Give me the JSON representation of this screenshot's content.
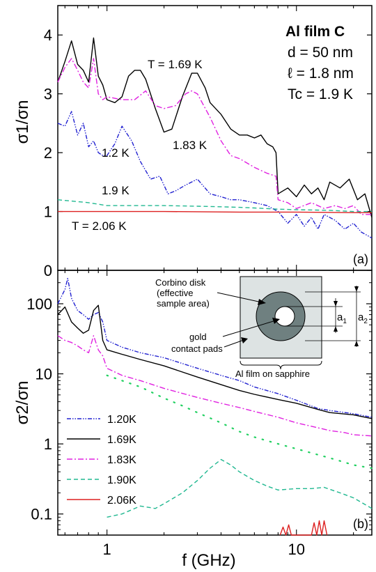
{
  "chart_data": [
    {
      "type": "line",
      "panel_label": "(a)",
      "ylabel": "σ1/σn",
      "xscale": "log",
      "xlim": [
        0.55,
        25
      ],
      "ylim": [
        0,
        4.5
      ],
      "yticks": [
        "0",
        "1",
        "2",
        "3",
        "4"
      ],
      "info_box": {
        "title": "Al film C",
        "lines": [
          "d = 50 nm",
          "ℓ = 1.8 nm",
          "Tc = 1.9 K"
        ]
      },
      "annotations": {
        "t169": "T = 1.69 K",
        "t183": "1.83 K",
        "t12": "1.2 K",
        "t19": "1.9 K",
        "t206": "T = 2.06 K"
      },
      "series": [
        {
          "name": "1.69 K",
          "color": "#000000",
          "x": [
            0.55,
            0.6,
            0.65,
            0.7,
            0.75,
            0.8,
            0.85,
            0.9,
            0.95,
            1.0,
            1.1,
            1.2,
            1.3,
            1.4,
            1.5,
            1.6,
            1.8,
            2.0,
            2.2,
            2.5,
            2.8,
            3.0,
            3.3,
            3.5,
            4.0,
            4.5,
            5.0,
            5.5,
            6.0,
            6.5,
            7.0,
            7.5,
            7.8,
            8.0,
            9,
            10,
            11,
            12,
            13,
            14,
            15,
            17,
            19,
            21,
            23,
            25
          ],
          "y": [
            3.2,
            3.55,
            3.9,
            3.5,
            3.4,
            3.2,
            3.95,
            3.3,
            3.15,
            2.9,
            2.85,
            2.95,
            3.3,
            3.4,
            3.4,
            3.25,
            2.75,
            2.35,
            2.4,
            2.95,
            3.35,
            3.35,
            3.1,
            2.85,
            2.65,
            2.4,
            2.3,
            2.3,
            2.25,
            2.3,
            2.15,
            2.1,
            2.0,
            1.3,
            1.4,
            1.25,
            1.45,
            1.3,
            1.4,
            1.2,
            1.5,
            1.4,
            1.55,
            1.2,
            1.3,
            0.9
          ]
        },
        {
          "name": "1.83 K",
          "color": "#e020e0",
          "x": [
            0.55,
            0.6,
            0.65,
            0.7,
            0.75,
            0.8,
            0.85,
            0.9,
            0.95,
            1.0,
            1.2,
            1.4,
            1.6,
            1.8,
            2.0,
            2.3,
            2.6,
            2.8,
            3.0,
            3.5,
            4.0,
            4.5,
            5.0,
            6.0,
            7.0,
            7.8,
            8.0,
            9,
            10,
            12,
            14,
            16,
            18,
            20,
            22,
            25
          ],
          "y": [
            3.2,
            3.45,
            3.6,
            3.4,
            3.2,
            3.1,
            3.6,
            3.0,
            2.9,
            2.95,
            2.9,
            2.9,
            3.05,
            2.8,
            2.75,
            2.8,
            3.0,
            3.05,
            3.0,
            2.6,
            2.2,
            1.95,
            1.9,
            1.75,
            1.65,
            1.6,
            1.2,
            1.15,
            1.05,
            1.15,
            1.05,
            1.1,
            1.05,
            1.1,
            0.95,
            0.95
          ]
        },
        {
          "name": "1.2 K",
          "color": "#2020d0",
          "x": [
            0.55,
            0.6,
            0.65,
            0.7,
            0.75,
            0.8,
            0.85,
            0.9,
            0.95,
            1.0,
            1.1,
            1.2,
            1.35,
            1.5,
            1.7,
            1.9,
            2.1,
            2.3,
            2.6,
            3.0,
            3.5,
            4.0,
            4.5,
            5,
            6,
            7,
            8,
            9,
            10,
            11,
            12,
            13,
            14,
            16,
            18,
            20,
            22,
            25
          ],
          "y": [
            2.5,
            2.45,
            2.7,
            2.3,
            2.5,
            2.1,
            2.2,
            2.0,
            1.95,
            1.95,
            2.15,
            2.45,
            2.2,
            1.85,
            1.55,
            1.6,
            1.3,
            1.35,
            1.45,
            1.55,
            1.3,
            1.25,
            1.2,
            1.2,
            1.15,
            1.1,
            1.0,
            0.8,
            0.95,
            0.75,
            0.9,
            0.7,
            0.95,
            0.85,
            0.7,
            0.8,
            0.65,
            0.55
          ]
        },
        {
          "name": "1.9 K",
          "color": "#20b890",
          "x": [
            0.55,
            0.8,
            1.0,
            1.5,
            2,
            3,
            4,
            5,
            6,
            8,
            10,
            15,
            20,
            25
          ],
          "y": [
            1.2,
            1.15,
            1.1,
            1.1,
            1.1,
            1.09,
            1.08,
            1.07,
            1.06,
            1.04,
            1.03,
            1.02,
            1.0,
            1.0
          ]
        },
        {
          "name": "2.06 K",
          "color": "#dd2020",
          "x": [
            0.55,
            1,
            2,
            5,
            10,
            20,
            25
          ],
          "y": [
            1.0,
            1.0,
            1.0,
            0.99,
            0.99,
            0.98,
            0.98
          ]
        }
      ]
    },
    {
      "type": "line",
      "panel_label": "(b)",
      "xlabel": "f (GHz)",
      "ylabel": "σ2/σn",
      "xscale": "log",
      "yscale": "log",
      "xlim": [
        0.55,
        25
      ],
      "ylim": [
        0.05,
        300
      ],
      "xticks": [
        "1",
        "10"
      ],
      "yticks": [
        "0.1",
        "1",
        "10",
        "100"
      ],
      "inset": {
        "label1": "Corbino disk",
        "label2": "(effective",
        "label3": "sample area)",
        "label4": "gold",
        "label5": "contact pads",
        "caption": "Al film on sapphire",
        "a1": "a",
        "a1_sub": "1",
        "a2": "a",
        "a2_sub": "2"
      },
      "legend": [
        {
          "label": "1.20K",
          "color": "#2020d0"
        },
        {
          "label": "1.69K",
          "color": "#000000"
        },
        {
          "label": "1.83K",
          "color": "#e020e0"
        },
        {
          "label": "1.90K",
          "color": "#20b890"
        },
        {
          "label": "2.06K",
          "color": "#dd2020"
        }
      ],
      "series": [
        {
          "name": "1.20K",
          "color": "#2020d0",
          "x": [
            0.55,
            0.6,
            0.62,
            0.65,
            0.7,
            0.75,
            0.8,
            0.85,
            0.9,
            0.95,
            1.0,
            1.2,
            1.5,
            2,
            3,
            4,
            5,
            6,
            8,
            10,
            13,
            15,
            20,
            25
          ],
          "y": [
            100,
            160,
            230,
            120,
            80,
            70,
            60,
            70,
            75,
            55,
            30,
            24,
            20,
            17,
            12,
            9.5,
            8,
            6.5,
            5.2,
            4.2,
            3.2,
            3.0,
            2.7,
            2.4
          ]
        },
        {
          "name": "1.69K",
          "color": "#000000",
          "x": [
            0.55,
            0.6,
            0.65,
            0.7,
            0.75,
            0.8,
            0.85,
            0.9,
            0.95,
            1.0,
            1.2,
            1.5,
            2,
            3,
            4,
            5,
            6,
            8,
            10,
            13,
            15,
            20,
            25
          ],
          "y": [
            70,
            90,
            55,
            45,
            38,
            42,
            80,
            95,
            30,
            22,
            19,
            16,
            13,
            9,
            7,
            5.8,
            5.1,
            4.3,
            3.8,
            3.1,
            2.8,
            2.6,
            2.3
          ]
        },
        {
          "name": "1.83K",
          "color": "#e020e0",
          "x": [
            0.55,
            0.6,
            0.65,
            0.7,
            0.75,
            0.8,
            0.85,
            0.9,
            0.95,
            1.0,
            1.2,
            1.5,
            2,
            3,
            4,
            5,
            6,
            8,
            10,
            13,
            15,
            18,
            20,
            25
          ],
          "y": [
            35,
            30,
            28,
            25,
            22,
            20,
            35,
            22,
            18,
            12,
            9.5,
            8,
            6.2,
            4.6,
            3.8,
            3.3,
            2.9,
            2.4,
            2.0,
            1.7,
            1.55,
            1.45,
            1.35,
            1.3
          ]
        },
        {
          "name": "1.90K",
          "color": "#20b890",
          "x": [
            1.0,
            1.2,
            1.5,
            1.8,
            2,
            2.5,
            3,
            3.5,
            4,
            4.5,
            5,
            6,
            7,
            8,
            10,
            12,
            14,
            17,
            20,
            25
          ],
          "y": [
            0.09,
            0.1,
            0.13,
            0.12,
            0.14,
            0.2,
            0.3,
            0.45,
            0.6,
            0.5,
            0.4,
            0.3,
            0.25,
            0.22,
            0.23,
            0.23,
            0.24,
            0.2,
            0.17,
            0.12
          ]
        },
        {
          "name": "1.90K dots",
          "color": "#20d060",
          "x": [
            1.0,
            1.2,
            1.5,
            2,
            2.5,
            3,
            4,
            5,
            6,
            8,
            10,
            13,
            16,
            20,
            25
          ],
          "y": [
            9.5,
            8,
            6.5,
            4.5,
            3.5,
            2.8,
            2.0,
            1.5,
            1.25,
            1.0,
            0.85,
            0.7,
            0.6,
            0.5,
            0.45
          ]
        },
        {
          "name": "2.06K",
          "color": "#dd2020",
          "x": [
            8.2,
            8.5,
            8.8,
            9.1,
            9.4,
            12,
            12.4,
            12.8,
            13.2,
            13.6,
            14,
            14.5
          ],
          "y": [
            0.05,
            0.065,
            0.05,
            0.07,
            0.05,
            0.05,
            0.075,
            0.05,
            0.08,
            0.05,
            0.08,
            0.05
          ]
        }
      ]
    }
  ]
}
